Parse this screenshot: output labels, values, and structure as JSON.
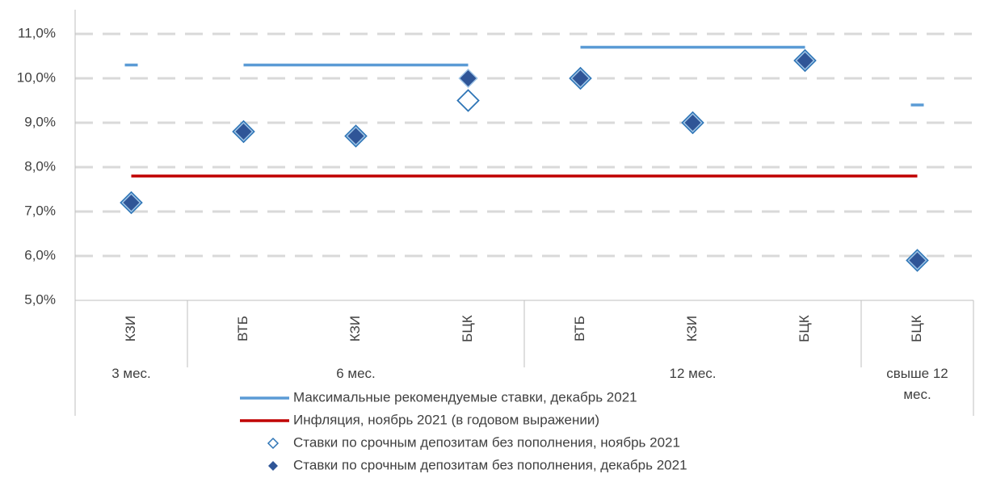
{
  "chart_data": {
    "type": "line",
    "categories": [
      "КЗИ",
      "ВТБ",
      "КЗИ",
      "БЦК",
      "ВТБ",
      "КЗИ",
      "БЦК",
      "БЦК"
    ],
    "groups": [
      {
        "label": "3 мес.",
        "count": 1
      },
      {
        "label": "6 мес.",
        "count": 3
      },
      {
        "label": "12 мес.",
        "count": 3
      },
      {
        "label": "свыше 12 мес.",
        "count": 1
      }
    ],
    "series": [
      {
        "name": "Максимальные рекомендуемые ставки, декабрь 2021",
        "color": "#5b9bd5",
        "style": "group-line",
        "values": [
          10.3,
          10.3,
          10.3,
          10.3,
          10.7,
          10.7,
          10.7,
          9.4
        ]
      },
      {
        "name": "Инфляция, ноябрь 2021 (в годовом выражении)",
        "color": "#c00000",
        "style": "line",
        "values": [
          7.8,
          7.8,
          7.8,
          7.8,
          7.8,
          7.8,
          7.8,
          7.8
        ]
      },
      {
        "name": "Ставки по срочным депозитам без пополнения, ноябрь 2021",
        "color": "#2e75b6",
        "style": "diamond-open",
        "values": [
          7.2,
          8.8,
          8.7,
          9.5,
          10.0,
          9.0,
          10.4,
          5.9
        ]
      },
      {
        "name": "Ставки по срочным депозитам без пополнения, декабрь 2021",
        "color": "#2f5597",
        "style": "diamond-filled",
        "values": [
          7.2,
          8.8,
          8.7,
          10.0,
          10.0,
          9.0,
          10.4,
          5.9
        ]
      }
    ],
    "ylim": [
      5,
      11
    ],
    "yticks": [
      {
        "value": 5,
        "label": "5,0%"
      },
      {
        "value": 6,
        "label": "6,0%"
      },
      {
        "value": 7,
        "label": "7,0%"
      },
      {
        "value": 8,
        "label": "8,0%"
      },
      {
        "value": 9,
        "label": "9,0%"
      },
      {
        "value": 10,
        "label": "10,0%"
      },
      {
        "value": 11,
        "label": "11,0%"
      }
    ],
    "grid": true
  }
}
